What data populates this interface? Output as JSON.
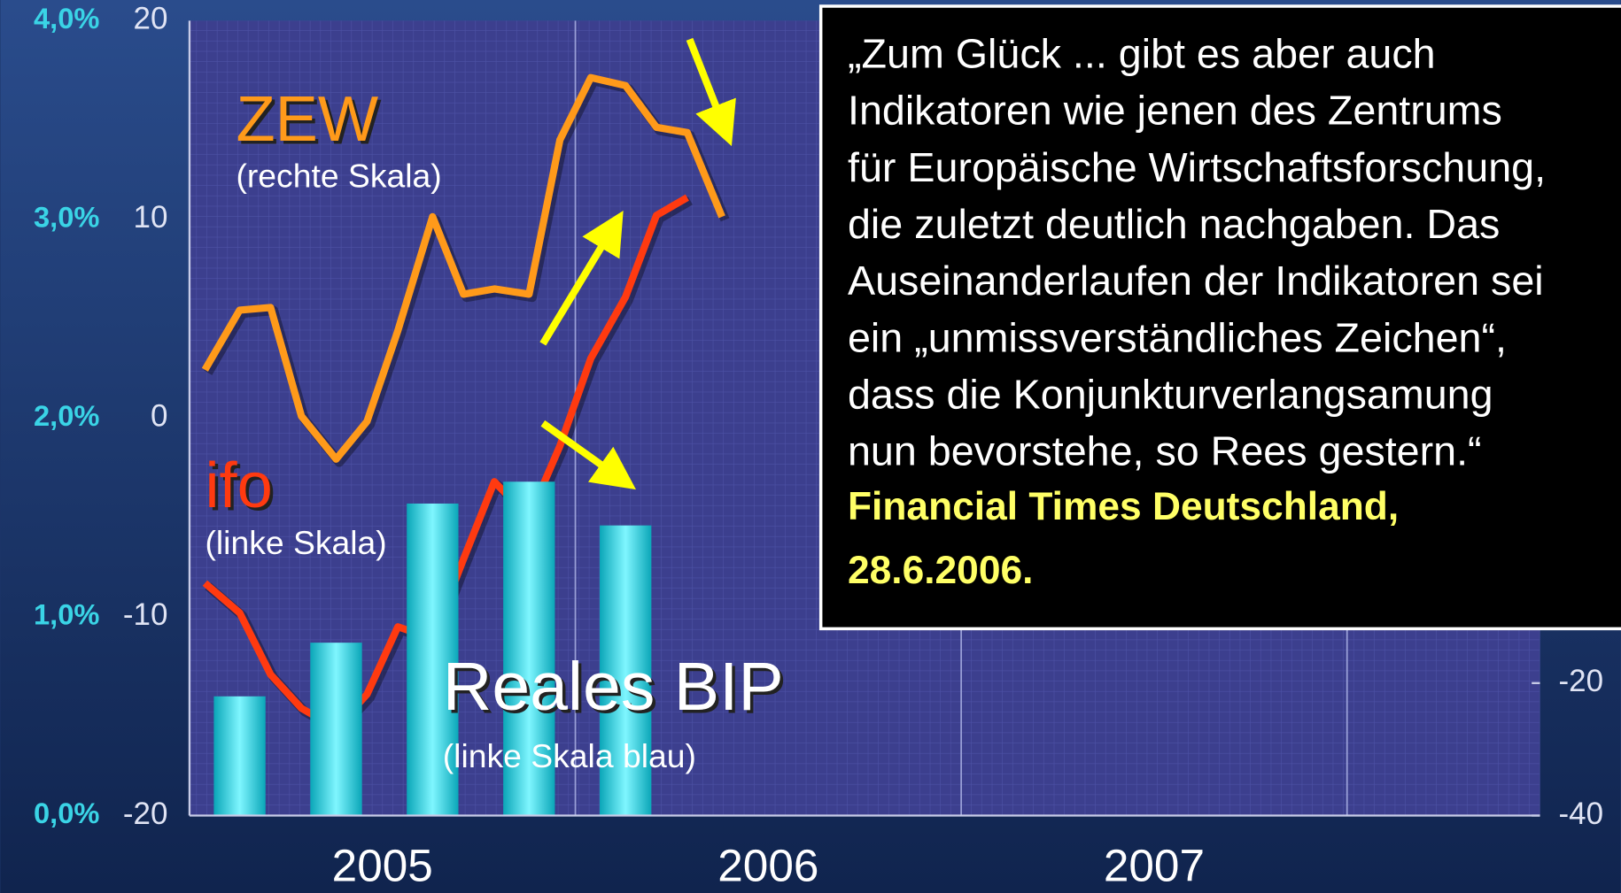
{
  "chart_data": {
    "type": "combo",
    "xlim": [
      2005,
      2008.5
    ],
    "xticks": [
      {
        "value": 2005.5,
        "label": "2005"
      },
      {
        "value": 2006.5,
        "label": "2006"
      },
      {
        "value": 2007.5,
        "label": "2007"
      }
    ],
    "xgrid": [
      2006,
      2007,
      2008
    ],
    "ylim": [
      -20,
      20
    ],
    "yticks": [
      20,
      10,
      0,
      -10,
      -20
    ],
    "y2lim": [
      -40,
      80
    ],
    "y2ticks": [
      -20,
      -40
    ],
    "y3lim": [
      0,
      4
    ],
    "y3ticks": [
      {
        "value": 4,
        "label": "4,0%"
      },
      {
        "value": 3,
        "label": "3,0%"
      },
      {
        "value": 2,
        "label": "2,0%"
      },
      {
        "value": 1,
        "label": "1,0%"
      },
      {
        "value": 0,
        "label": "0,0%"
      }
    ],
    "series": [
      {
        "name": "ZEW",
        "scale_label": "(rechte Skala)",
        "axis": "y2",
        "kind": "line",
        "color": "#ff9a1a",
        "x": [
          2005.04,
          2005.13,
          2005.21,
          2005.29,
          2005.38,
          2005.46,
          2005.54,
          2005.63,
          2005.71,
          2005.79,
          2005.88,
          2005.96,
          2006.04,
          2006.13,
          2006.21,
          2006.29,
          2006.38
        ],
        "values": [
          27.3,
          36.3,
          36.7,
          20.3,
          13.8,
          19.5,
          33.2,
          50.4,
          38.7,
          39.5,
          38.7,
          62.0,
          71.4,
          70.2,
          63.9,
          63.1,
          50.4
        ]
      },
      {
        "name": "ifo",
        "scale_label": "(linke Skala)",
        "axis": "y",
        "kind": "line",
        "color": "#ff3a10",
        "x": [
          2005.04,
          2005.13,
          2005.21,
          2005.29,
          2005.38,
          2005.46,
          2005.54,
          2005.63,
          2005.71,
          2005.79,
          2005.88,
          2005.96,
          2006.04,
          2006.13,
          2006.21,
          2006.29
        ],
        "values": [
          -8.3,
          -9.8,
          -12.9,
          -14.6,
          -15.6,
          -13.9,
          -10.5,
          -11.1,
          -7.1,
          -3.2,
          -5.0,
          -1.4,
          3.0,
          6.1,
          10.2,
          11.1
        ]
      },
      {
        "name": "Reales BIP",
        "scale_label": "(linke Skala blau)",
        "axis": "y3",
        "kind": "bar",
        "color": "#19d8e8",
        "x": [
          2005.13,
          2005.38,
          2005.63,
          2005.88,
          2006.13
        ],
        "values": [
          0.6,
          0.87,
          1.57,
          1.68,
          1.46
        ]
      }
    ],
    "quote": [
      "„Zum Glück ... gibt es aber auch",
      "Indikatoren wie jenen des Zentrums",
      "für Europäische Wirtschaftsforschung,",
      "die zuletzt deutlich nachgaben. Das",
      "Auseinanderlaufen der Indikatoren sei",
      "ein „unmissverständliches Zeichen“,",
      "dass die Konjunkturverlangsamung",
      "nun bevorstehe, so Rees gestern.“"
    ],
    "source": [
      "Financial Times Deutschland,",
      "28.6.2006."
    ]
  }
}
